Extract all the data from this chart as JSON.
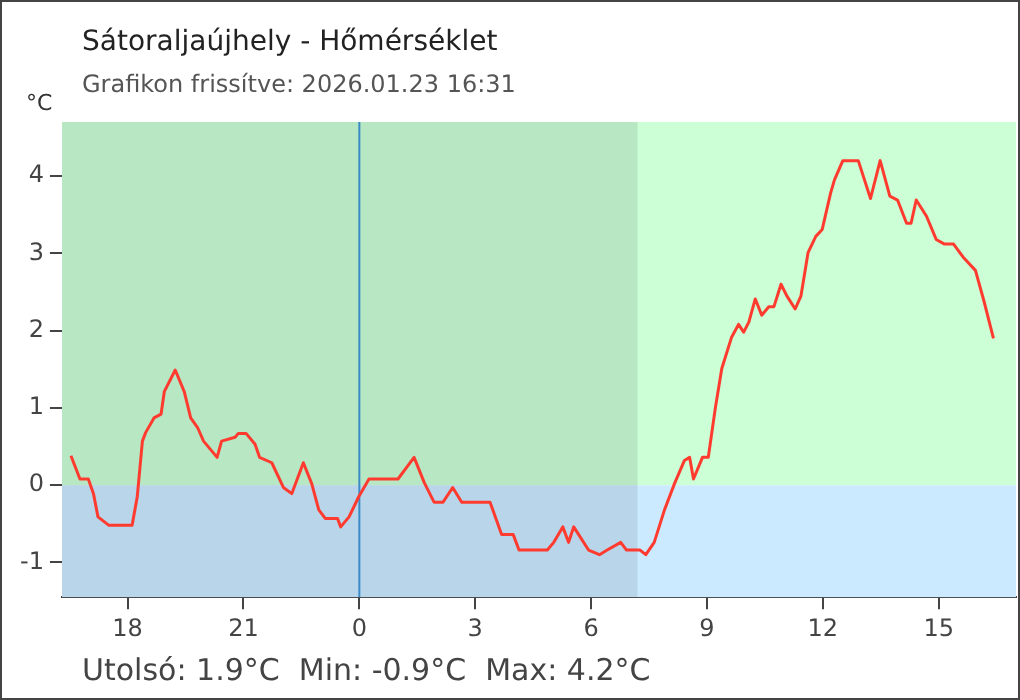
{
  "chart_data": {
    "type": "line",
    "title": "Sátoraljaújhely - Hőmérséklet",
    "subtitle": "Grafikon frissítve: 2026.01.23 16:31",
    "ylabel": "°C",
    "annotations": [
      "Utolsó: 1.9°C  Min: -0.9°C  Max: 4.2°C"
    ],
    "xlim": [
      "2026-01-22T16:18",
      "2026-01-23T17:00"
    ],
    "xticks": [
      {
        "value": "2026-01-22T18:00",
        "label": "18"
      },
      {
        "value": "2026-01-22T21:00",
        "label": "21"
      },
      {
        "value": "2026-01-23T00:00",
        "label": "0"
      },
      {
        "value": "2026-01-23T03:00",
        "label": "3"
      },
      {
        "value": "2026-01-23T06:00",
        "label": "6"
      },
      {
        "value": "2026-01-23T09:00",
        "label": "9"
      },
      {
        "value": "2026-01-23T12:00",
        "label": "12"
      },
      {
        "value": "2026-01-23T15:00",
        "label": "15"
      }
    ],
    "ylim": [
      -1.45,
      4.7
    ],
    "yticks": [
      -1,
      0,
      1,
      2,
      3,
      4
    ],
    "grid": false,
    "legend": false,
    "marker": "none",
    "line_style": "solid",
    "bands": [
      {
        "axis": "y",
        "from": 0,
        "to": 4.7,
        "color": "#ccffd5"
      },
      {
        "axis": "y",
        "from": -1.45,
        "to": 0,
        "color": "#cceaff"
      },
      {
        "axis": "x",
        "from": "2026-01-22T16:18",
        "to": "2026-01-23T07:12",
        "color": "#1c2e3a"
      }
    ],
    "ref_lines": [
      {
        "axis": "x",
        "value": "2026-01-23T00:00",
        "color": "#3a8ac8"
      }
    ],
    "series": [
      {
        "color": "#ff3b30",
        "x": [
          "2026-01-22T16:32",
          "2026-01-22T16:46",
          "2026-01-22T16:59",
          "2026-01-22T17:07",
          "2026-01-22T17:14",
          "2026-01-22T17:31",
          "2026-01-22T18:07",
          "2026-01-22T18:15",
          "2026-01-22T18:23",
          "2026-01-22T18:28",
          "2026-01-22T18:41",
          "2026-01-22T18:52",
          "2026-01-22T18:57",
          "2026-01-22T19:14",
          "2026-01-22T19:28",
          "2026-01-22T19:38",
          "2026-01-22T19:49",
          "2026-01-22T19:58",
          "2026-01-22T20:19",
          "2026-01-22T20:26",
          "2026-01-22T20:47",
          "2026-01-22T20:52",
          "2026-01-22T21:04",
          "2026-01-22T21:18",
          "2026-01-22T21:25",
          "2026-01-22T21:44",
          "2026-01-22T22:02",
          "2026-01-22T22:15",
          "2026-01-22T22:33",
          "2026-01-22T22:46",
          "2026-01-22T22:57",
          "2026-01-22T23:07",
          "2026-01-22T23:26",
          "2026-01-22T23:31",
          "2026-01-22T23:44",
          "2026-01-22T23:59",
          "2026-01-23T00:15",
          "2026-01-23T01:00",
          "2026-01-23T01:25",
          "2026-01-23T01:41",
          "2026-01-23T01:56",
          "2026-01-23T02:10",
          "2026-01-23T02:25",
          "2026-01-23T02:39",
          "2026-01-23T03:23",
          "2026-01-23T03:41",
          "2026-01-23T03:59",
          "2026-01-23T04:08",
          "2026-01-23T04:52",
          "2026-01-23T05:02",
          "2026-01-23T05:16",
          "2026-01-23T05:25",
          "2026-01-23T05:33",
          "2026-01-23T05:56",
          "2026-01-23T06:13",
          "2026-01-23T06:25",
          "2026-01-23T06:46",
          "2026-01-23T06:55",
          "2026-01-23T07:16",
          "2026-01-23T07:25",
          "2026-01-23T07:38",
          "2026-01-23T07:54",
          "2026-01-23T08:10",
          "2026-01-23T08:25",
          "2026-01-23T08:33",
          "2026-01-23T08:39",
          "2026-01-23T08:53",
          "2026-01-23T09:02",
          "2026-01-23T09:13",
          "2026-01-23T09:23",
          "2026-01-23T09:38",
          "2026-01-23T09:49",
          "2026-01-23T09:57",
          "2026-01-23T10:05",
          "2026-01-23T10:15",
          "2026-01-23T10:25",
          "2026-01-23T10:36",
          "2026-01-23T10:44",
          "2026-01-23T10:55",
          "2026-01-23T11:04",
          "2026-01-23T11:17",
          "2026-01-23T11:26",
          "2026-01-23T11:37",
          "2026-01-23T11:49",
          "2026-01-23T11:59",
          "2026-01-23T12:12",
          "2026-01-23T12:18",
          "2026-01-23T12:31",
          "2026-01-23T12:55",
          "2026-01-23T13:14",
          "2026-01-23T13:29",
          "2026-01-23T13:44",
          "2026-01-23T13:56",
          "2026-01-23T14:10",
          "2026-01-23T14:17",
          "2026-01-23T14:25",
          "2026-01-23T14:41",
          "2026-01-23T14:56",
          "2026-01-23T15:09",
          "2026-01-23T15:23",
          "2026-01-23T15:38",
          "2026-01-23T15:57",
          "2026-01-23T16:10",
          "2026-01-23T16:25"
        ],
        "values": [
          0.38,
          0.08,
          0.08,
          -0.11,
          -0.41,
          -0.52,
          -0.52,
          -0.15,
          0.57,
          0.68,
          0.87,
          0.92,
          1.21,
          1.49,
          1.21,
          0.87,
          0.74,
          0.57,
          0.36,
          0.57,
          0.62,
          0.67,
          0.67,
          0.53,
          0.36,
          0.29,
          -0.03,
          -0.11,
          0.29,
          0.02,
          -0.32,
          -0.43,
          -0.43,
          -0.54,
          -0.41,
          -0.15,
          0.08,
          0.08,
          0.36,
          0.03,
          -0.22,
          -0.22,
          -0.03,
          -0.22,
          -0.22,
          -0.64,
          -0.64,
          -0.84,
          -0.84,
          -0.74,
          -0.54,
          -0.74,
          -0.54,
          -0.84,
          -0.9,
          -0.84,
          -0.74,
          -0.84,
          -0.84,
          -0.9,
          -0.74,
          -0.32,
          0.03,
          0.32,
          0.36,
          0.08,
          0.36,
          0.36,
          1.0,
          1.51,
          1.91,
          2.08,
          1.98,
          2.11,
          2.41,
          2.2,
          2.31,
          2.31,
          2.6,
          2.45,
          2.28,
          2.45,
          3.01,
          3.22,
          3.31,
          3.78,
          3.95,
          4.2,
          4.2,
          3.71,
          4.2,
          3.74,
          3.69,
          3.39,
          3.39,
          3.69,
          3.48,
          3.18,
          3.12,
          3.12,
          2.95,
          2.78,
          2.39,
          1.9
        ]
      }
    ]
  }
}
